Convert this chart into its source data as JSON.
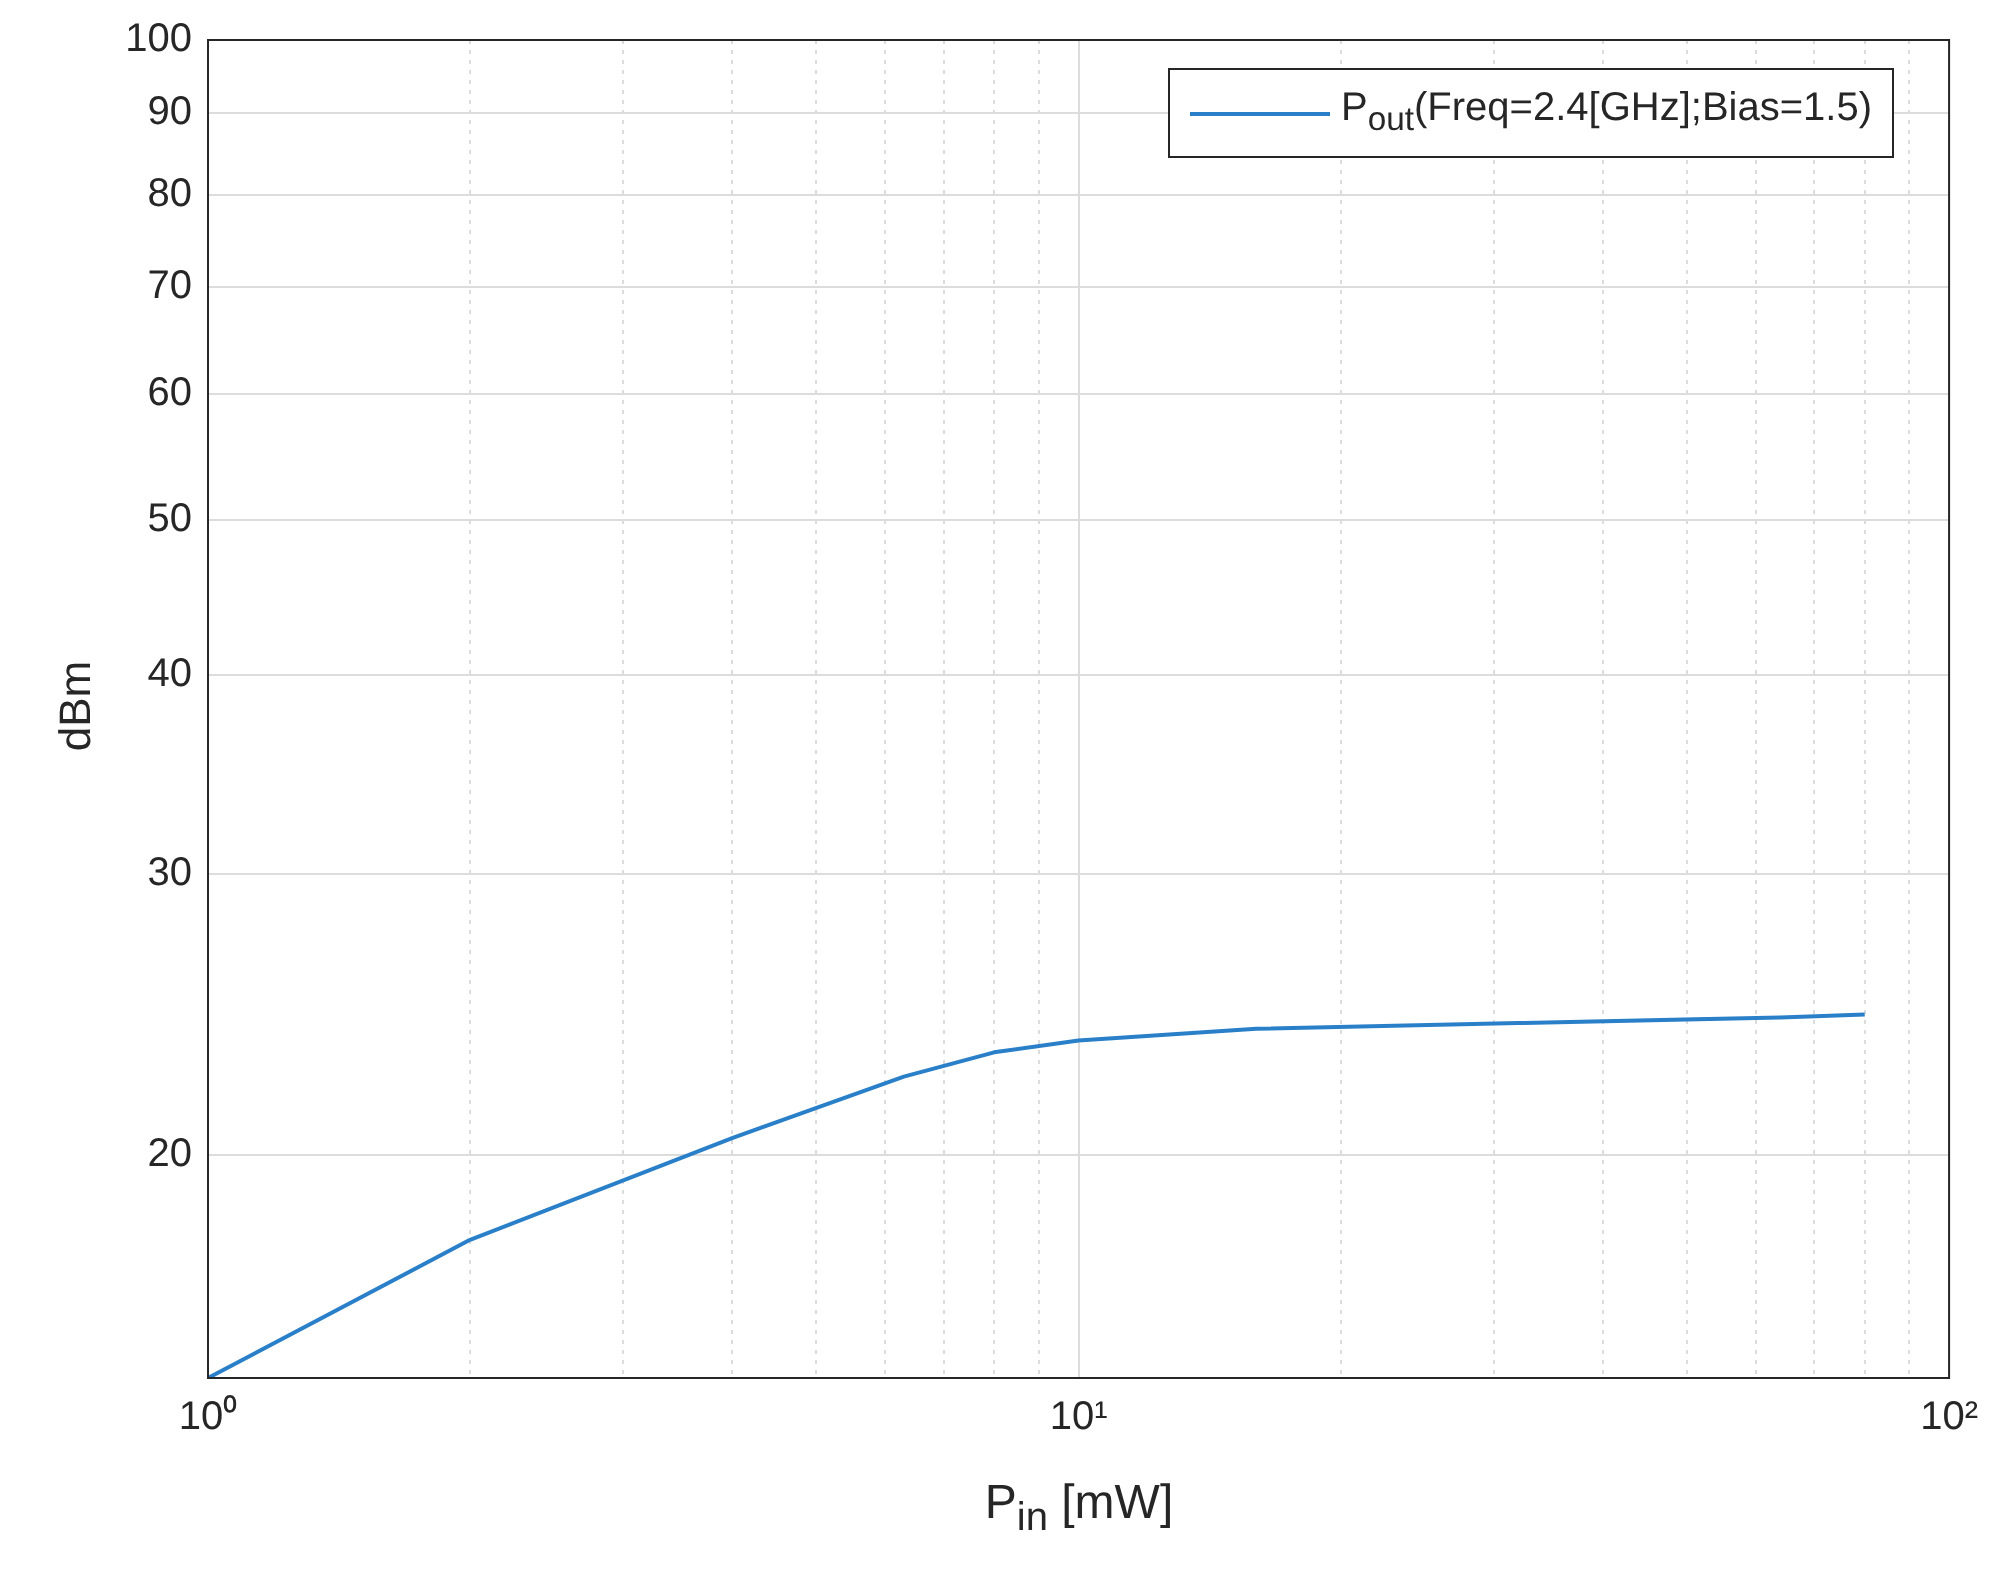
{
  "chart_data": {
    "type": "line",
    "xlabel": "P$_{in}$ [mW]",
    "ylabel": "dBm",
    "log": "xy",
    "grid": true,
    "legend": "top right",
    "xlim": [
      1,
      100
    ],
    "ylim": [
      14.5,
      100
    ],
    "xticks": [
      {
        "value": 1,
        "label": "10⁰"
      },
      {
        "value": 2,
        "label": null
      },
      {
        "value": 3,
        "label": null
      },
      {
        "value": 4,
        "label": null
      },
      {
        "value": 5,
        "label": null
      },
      {
        "value": 6,
        "label": null
      },
      {
        "value": 7,
        "label": null
      },
      {
        "value": 8,
        "label": null
      },
      {
        "value": 9,
        "label": null
      },
      {
        "value": 10,
        "label": "10¹"
      },
      {
        "value": 20,
        "label": null
      },
      {
        "value": 30,
        "label": null
      },
      {
        "value": 40,
        "label": null
      },
      {
        "value": 50,
        "label": null
      },
      {
        "value": 60,
        "label": null
      },
      {
        "value": 70,
        "label": null
      },
      {
        "value": 80,
        "label": null
      },
      {
        "value": 90,
        "label": null
      },
      {
        "value": 100,
        "label": "10²"
      }
    ],
    "yticks": [
      20,
      30,
      40,
      50,
      60,
      70,
      80,
      90,
      100
    ],
    "series": [
      {
        "name": "P$_{out}$(Freq=2.4[GHz];Bias=1.5)",
        "color": "#2a7fc9",
        "x": [
          1,
          2,
          4,
          6.3,
          8,
          10,
          16,
          32,
          64,
          80
        ],
        "values": [
          14.5,
          17.7,
          20.5,
          22.4,
          23.2,
          23.6,
          24.0,
          24.2,
          24.4,
          24.5
        ]
      }
    ]
  }
}
